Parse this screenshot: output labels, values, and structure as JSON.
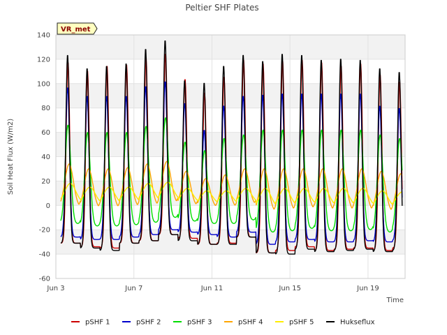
{
  "chart_data": {
    "type": "line",
    "title": "Peltier SHF Plates",
    "xlabel": "Time",
    "ylabel": "Soil Heat Flux (W/m2)",
    "xlim": [
      3,
      20.9
    ],
    "ylim": [
      -60,
      140
    ],
    "yticks": [
      -60,
      -40,
      -20,
      0,
      20,
      40,
      60,
      80,
      100,
      120,
      140
    ],
    "xticks": [
      {
        "value": 3,
        "label": "Jun 3"
      },
      {
        "value": 7,
        "label": "Jun 7"
      },
      {
        "value": 11,
        "label": "Jun 11"
      },
      {
        "value": 15,
        "label": "Jun 15"
      },
      {
        "value": 19,
        "label": "Jun 19"
      }
    ],
    "annotation": "VR_met",
    "legend_position": "bottom",
    "days": [
      3.25,
      4.25,
      5.25,
      6.25,
      7.25,
      8.25,
      9.25,
      10.25,
      11.25,
      12.25,
      13.25,
      14.25,
      15.25,
      16.25,
      17.25,
      18.25,
      19.25,
      20.25
    ],
    "series": [
      {
        "name": "pSHF 1",
        "color": "#cc0000",
        "peak_hour": 0.62,
        "width": 0.09,
        "peaks": [
          118,
          111,
          115,
          116,
          122,
          125,
          104,
          93,
          106,
          120,
          117,
          119,
          120,
          118,
          115,
          117,
          108,
          102
        ],
        "troughs": [
          -31,
          -34,
          -35,
          -31,
          -29,
          -24,
          -27,
          -32,
          -31,
          -26,
          -39,
          -37,
          -34,
          -37,
          -36,
          -35,
          -37,
          -35
        ]
      },
      {
        "name": "pSHF 2",
        "color": "#0000cc",
        "peak_hour": 0.6,
        "width": 0.1,
        "peaks": [
          97,
          90,
          90,
          90,
          98,
          102,
          84,
          62,
          82,
          90,
          91,
          92,
          92,
          92,
          92,
          92,
          82,
          80
        ],
        "troughs": [
          -26,
          -28,
          -28,
          -26,
          -24,
          -20,
          -22,
          -24,
          -26,
          -22,
          -32,
          -30,
          -28,
          -30,
          -30,
          -29,
          -30,
          -29
        ]
      },
      {
        "name": "pSHF 3",
        "color": "#00dd00",
        "peak_hour": 0.62,
        "width": 0.14,
        "peaks": [
          66,
          60,
          60,
          60,
          65,
          72,
          52,
          45,
          55,
          58,
          62,
          62,
          62,
          62,
          62,
          62,
          58,
          55
        ],
        "troughs": [
          -15,
          -17,
          -17,
          -16,
          -14,
          -10,
          -13,
          -15,
          -15,
          -12,
          -22,
          -21,
          -19,
          -21,
          -21,
          -20,
          -22,
          -20
        ]
      },
      {
        "name": "pSHF 4",
        "color": "#ffa500",
        "peak_hour": 0.68,
        "width": 0.22,
        "peaks": [
          34,
          30,
          30,
          31,
          34,
          36,
          28,
          22,
          25,
          30,
          30,
          30,
          30,
          30,
          30,
          30,
          28,
          26
        ],
        "troughs": [
          -2,
          -3,
          -3,
          -2,
          -1,
          1,
          -1,
          -2,
          -2,
          0,
          -6,
          -5,
          -4,
          -5,
          -5,
          -5,
          -6,
          -5
        ]
      },
      {
        "name": "pSHF 5",
        "color": "#ffee00",
        "peak_hour": 0.74,
        "width": 0.28,
        "peaks": [
          18,
          15,
          15,
          15,
          18,
          19,
          14,
          12,
          12,
          14,
          14,
          14,
          14,
          14,
          14,
          14,
          12,
          11
        ],
        "troughs": [
          2,
          1,
          1,
          2,
          3,
          4,
          2,
          1,
          1,
          2,
          -2,
          -1,
          0,
          -1,
          -1,
          -1,
          -2,
          -1
        ]
      },
      {
        "name": "Hukseflux",
        "color": "#000000",
        "peak_hour": 0.6,
        "width": 0.09,
        "peaks": [
          124,
          113,
          115,
          117,
          129,
          136,
          103,
          101,
          115,
          124,
          119,
          125,
          124,
          120,
          121,
          120,
          113,
          110
        ],
        "troughs": [
          -31,
          -35,
          -37,
          -31,
          -29,
          -24,
          -29,
          -32,
          -32,
          -26,
          -39,
          -40,
          -36,
          -38,
          -37,
          -36,
          -38,
          -37
        ]
      }
    ]
  }
}
